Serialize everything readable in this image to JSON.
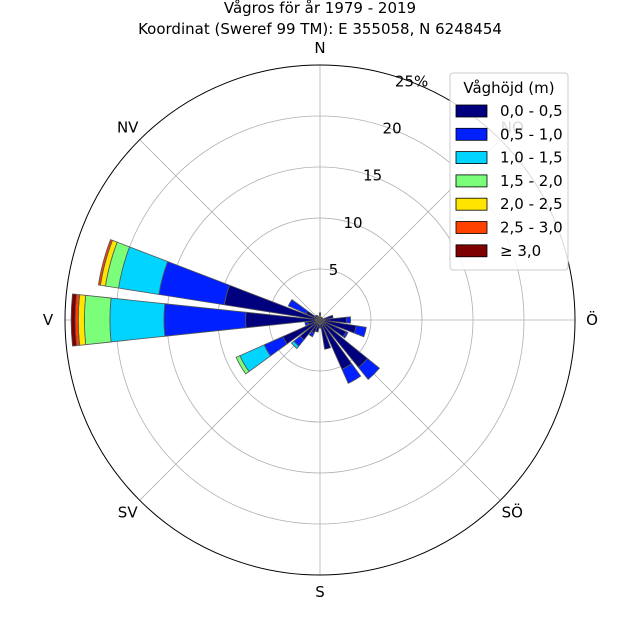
{
  "chart_data": {
    "type": "windrose",
    "title": "Vågros för år 1979 - 2019",
    "subtitle": "Koordinat (Sweref 99 TM): E 355058, N 6248454",
    "directions": [
      "N",
      "NV",
      "V",
      "SV",
      "S",
      "SÖ",
      "Ö",
      "NO"
    ],
    "radial_ticks": [
      "5",
      "10",
      "15",
      "20",
      "25%"
    ],
    "radial_tick_values": [
      5,
      10,
      15,
      20,
      25
    ],
    "rmax": 25,
    "legend_title": "Våghöjd (m)",
    "legend_placement": "top-right",
    "legend": [
      {
        "label": "0,0 - 0,5",
        "color": "#00007f"
      },
      {
        "label": "0,5 - 1,0",
        "color": "#0020ff"
      },
      {
        "label": "1,0 - 1,5",
        "color": "#00d4ff"
      },
      {
        "label": "1,5 - 2,0",
        "color": "#7bff7b"
      },
      {
        "label": "2,0 - 2,5",
        "color": "#ffe500"
      },
      {
        "label": "2,5 - 3,0",
        "color": "#ff4100"
      },
      {
        "label": "≥ 3,0",
        "color": "#7f0000"
      }
    ],
    "sector_width_deg": 12,
    "sectors": [
      {
        "bearing": 0,
        "cumulative": [
          0.6,
          0.7
        ]
      },
      {
        "bearing": 15,
        "cumulative": [
          0.3
        ]
      },
      {
        "bearing": 30,
        "cumulative": [
          0.3
        ]
      },
      {
        "bearing": 45,
        "cumulative": [
          0.3
        ]
      },
      {
        "bearing": 60,
        "cumulative": [
          0.3
        ]
      },
      {
        "bearing": 75,
        "cumulative": [
          1.3
        ]
      },
      {
        "bearing": 90,
        "cumulative": [
          2.6,
          3.0
        ]
      },
      {
        "bearing": 105,
        "cumulative": [
          3.6,
          4.6
        ]
      },
      {
        "bearing": 120,
        "cumulative": [
          2.8,
          3.0
        ]
      },
      {
        "bearing": 135,
        "cumulative": [
          6.0,
          7.5
        ]
      },
      {
        "bearing": 150,
        "cumulative": [
          5.3,
          6.8
        ]
      },
      {
        "bearing": 165,
        "cumulative": [
          2.9
        ]
      },
      {
        "bearing": 180,
        "cumulative": [
          0.8
        ]
      },
      {
        "bearing": 195,
        "cumulative": [
          1.2
        ]
      },
      {
        "bearing": 210,
        "cumulative": [
          1.4,
          1.8
        ]
      },
      {
        "bearing": 225,
        "cumulative": [
          2.5,
          3.3,
          3.6
        ]
      },
      {
        "bearing": 240,
        "cumulative": [
          4.0,
          6.0,
          8.6,
          9.0
        ]
      },
      {
        "bearing": 255,
        "cumulative": [
          1.2,
          1.5
        ]
      },
      {
        "bearing": 270,
        "cumulative": [
          7.3,
          15.3,
          20.6,
          23.1,
          23.7,
          24.0,
          24.4
        ]
      },
      {
        "bearing": 285,
        "cumulative": [
          9.5,
          16.0,
          20.0,
          21.3,
          21.8,
          22.0
        ]
      },
      {
        "bearing": 300,
        "cumulative": [
          1.5,
          3.4
        ]
      },
      {
        "bearing": 315,
        "cumulative": [
          0.6
        ]
      },
      {
        "bearing": 330,
        "cumulative": [
          0.5
        ]
      },
      {
        "bearing": 345,
        "cumulative": [
          0.3
        ]
      }
    ]
  }
}
